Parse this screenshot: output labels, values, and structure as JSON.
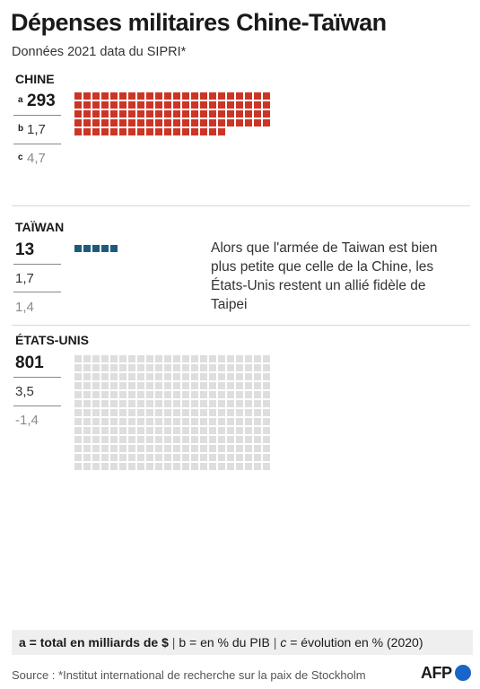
{
  "title": "Dépenses militaires Chine-Taïwan",
  "subtitle": "Données 2021 data du SIPRI*",
  "colors": {
    "china": "#cc3526",
    "taiwan": "#1e5a7c",
    "usa": "#dedede"
  },
  "chart_data": {
    "type": "waffle",
    "unit_label": "a = total en milliards de $",
    "groups": [
      {
        "name": "CHINE",
        "total": "293",
        "total_value": 293,
        "pib": "1,7",
        "evolution": "4,7",
        "letters": [
          "a",
          "b",
          "c"
        ]
      },
      {
        "name": "TAÏWAN",
        "total": "13",
        "total_value": 13,
        "pib": "1,7",
        "evolution": "1,4"
      },
      {
        "name": "ÉTATS-UNIS",
        "total": "801",
        "total_value": 801,
        "pib": "3,5",
        "evolution": "-1,4"
      }
    ]
  },
  "note": "Alors que l'armée de Taiwan est bien plus petite que celle de la Chine, les États-Unis restent un allié fidèle de Taipei",
  "legend": {
    "a": "a = total en milliards de $",
    "sep": "|",
    "b": "b = en % du PIB",
    "c_letter": "c",
    "c": " = évolution en % (2020)"
  },
  "source": "Source : *Institut international de recherche sur la paix de Stockholm",
  "logo": "AFP"
}
